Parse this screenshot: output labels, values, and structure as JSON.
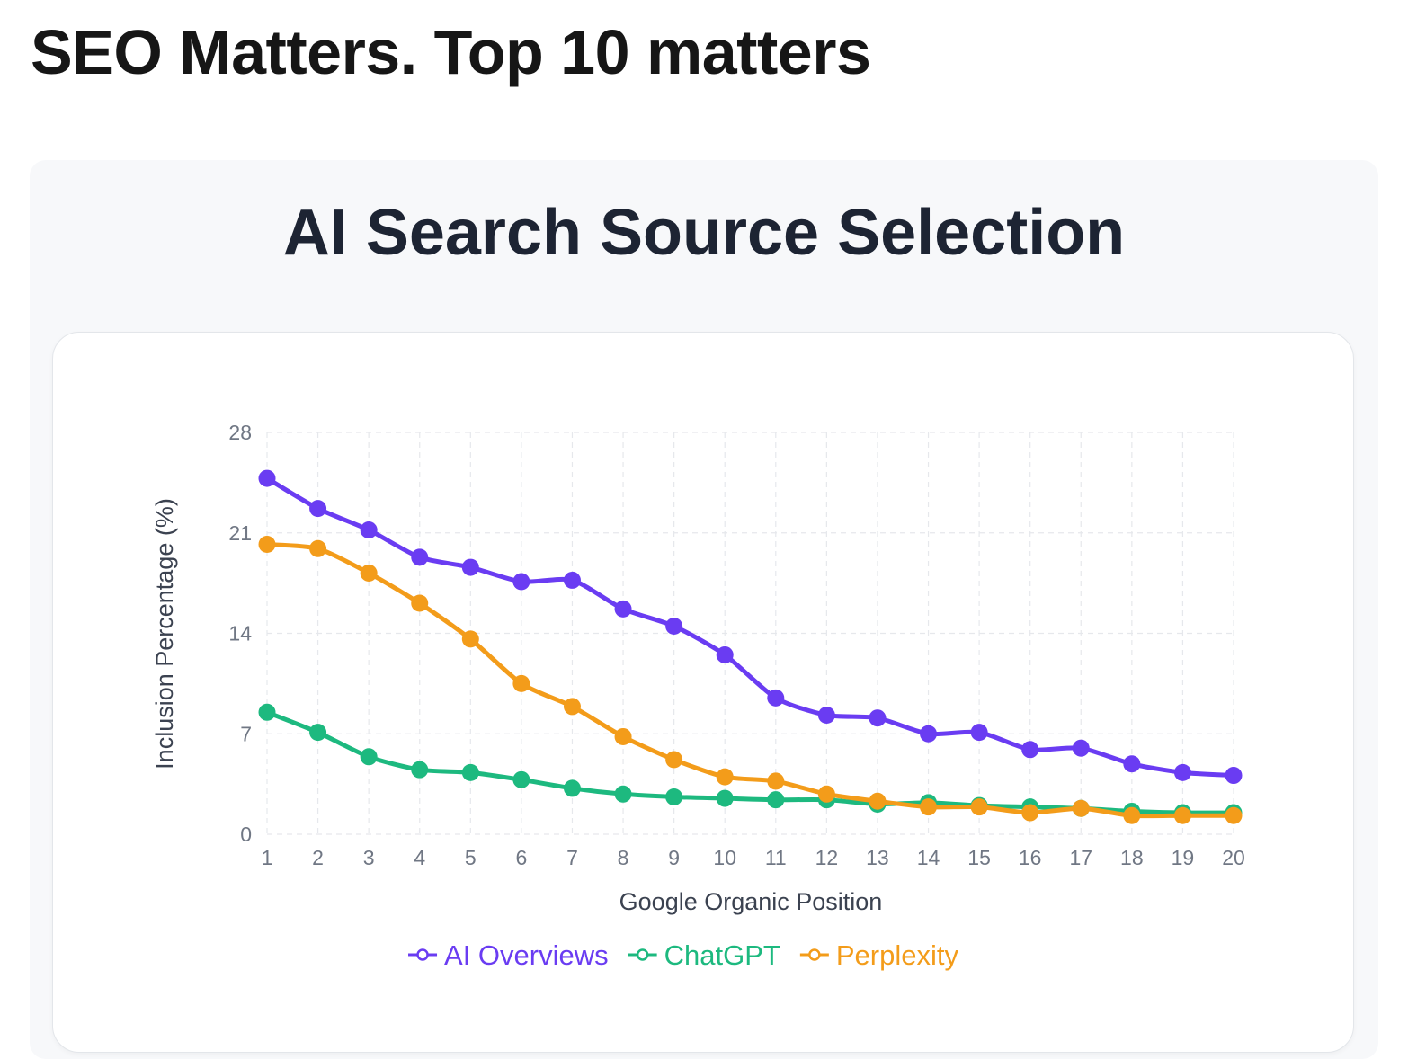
{
  "page": {
    "heading": "SEO Matters. Top 10 matters"
  },
  "chart_data": {
    "type": "line",
    "title": "AI Search Source Selection",
    "xlabel": "Google Organic Position",
    "ylabel": "Inclusion Percentage (%)",
    "x": [
      1,
      2,
      3,
      4,
      5,
      6,
      7,
      8,
      9,
      10,
      11,
      12,
      13,
      14,
      15,
      16,
      17,
      18,
      19,
      20
    ],
    "ylim": [
      0,
      28
    ],
    "yticks": [
      0,
      7,
      14,
      21,
      28
    ],
    "grid": true,
    "legend_position": "bottom",
    "series": [
      {
        "name": "AI Overviews",
        "color": "#6a3cf2",
        "values": [
          24.8,
          22.7,
          21.2,
          19.3,
          18.6,
          17.6,
          17.7,
          15.7,
          14.5,
          12.5,
          9.5,
          8.3,
          8.1,
          7.0,
          7.1,
          5.9,
          6.0,
          4.9,
          4.3,
          4.1
        ]
      },
      {
        "name": "ChatGPT",
        "color": "#1db97f",
        "values": [
          8.5,
          7.1,
          5.4,
          4.5,
          4.3,
          3.8,
          3.2,
          2.8,
          2.6,
          2.5,
          2.4,
          2.4,
          2.1,
          2.2,
          2.0,
          1.9,
          1.8,
          1.6,
          1.5,
          1.5
        ]
      },
      {
        "name": "Perplexity",
        "color": "#f39c1a",
        "values": [
          20.2,
          19.9,
          18.2,
          16.1,
          13.6,
          10.5,
          8.9,
          6.8,
          5.2,
          4.0,
          3.7,
          2.8,
          2.3,
          1.9,
          1.9,
          1.5,
          1.8,
          1.3,
          1.3,
          1.3
        ]
      }
    ]
  }
}
